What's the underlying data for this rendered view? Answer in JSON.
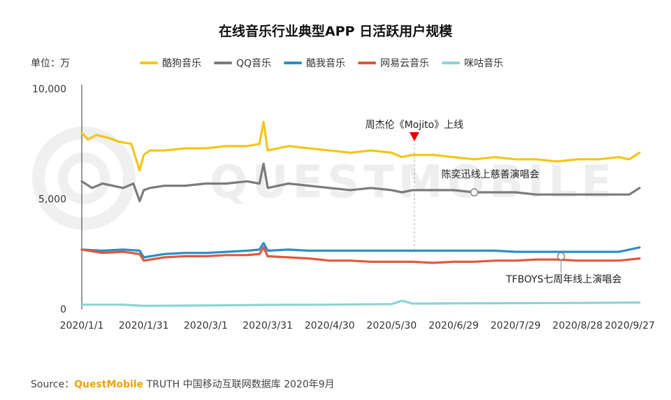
{
  "chart_data": {
    "type": "line",
    "title": "在线音乐行业典型APP 日活跃用户规模",
    "ylabel": "单位：万",
    "ylim": [
      0,
      10000
    ],
    "y_ticks": [
      "0",
      "5,000",
      "10,000"
    ],
    "x_ticks": [
      "2020/1/1",
      "2020/1/31",
      "2020/3/1",
      "2020/3/31",
      "2020/4/30",
      "2020/5/30",
      "2020/6/29",
      "2020/7/29",
      "2020/8/28",
      "2020/9/27"
    ],
    "x_range_days": [
      0,
      270
    ],
    "series": [
      {
        "name": "酷狗音乐",
        "color": "#f5c518",
        "x": [
          0,
          3,
          7,
          12,
          18,
          24,
          28,
          30,
          33,
          40,
          50,
          60,
          70,
          80,
          86,
          88,
          90,
          100,
          110,
          120,
          130,
          140,
          150,
          155,
          160,
          170,
          180,
          190,
          200,
          210,
          220,
          230,
          240,
          250,
          260,
          265,
          270
        ],
        "values": [
          8000,
          7700,
          7900,
          7800,
          7600,
          7500,
          6300,
          7000,
          7200,
          7200,
          7300,
          7300,
          7400,
          7400,
          7500,
          8500,
          7200,
          7400,
          7300,
          7200,
          7100,
          7200,
          7100,
          6900,
          7000,
          7000,
          6900,
          6800,
          6900,
          6800,
          6800,
          6700,
          6800,
          6800,
          6900,
          6800,
          7100
        ]
      },
      {
        "name": "QQ音乐",
        "color": "#7b7b7b",
        "x": [
          0,
          5,
          10,
          15,
          20,
          25,
          28,
          30,
          33,
          40,
          50,
          60,
          70,
          80,
          86,
          88,
          90,
          100,
          110,
          120,
          130,
          140,
          150,
          155,
          160,
          170,
          180,
          190,
          200,
          210,
          220,
          230,
          240,
          250,
          260,
          265,
          270
        ],
        "values": [
          5800,
          5500,
          5700,
          5600,
          5500,
          5700,
          4900,
          5400,
          5500,
          5600,
          5600,
          5700,
          5700,
          5800,
          5700,
          6600,
          5500,
          5700,
          5600,
          5500,
          5400,
          5500,
          5400,
          5300,
          5400,
          5400,
          5400,
          5300,
          5300,
          5300,
          5200,
          5200,
          5200,
          5200,
          5200,
          5200,
          5500
        ]
      },
      {
        "name": "酷我音乐",
        "color": "#2b8fc6",
        "x": [
          0,
          10,
          20,
          28,
          30,
          40,
          50,
          60,
          70,
          80,
          86,
          88,
          90,
          100,
          110,
          120,
          130,
          140,
          150,
          155,
          160,
          170,
          180,
          190,
          200,
          210,
          220,
          230,
          240,
          250,
          260,
          270
        ],
        "values": [
          2700,
          2650,
          2700,
          2650,
          2350,
          2500,
          2550,
          2550,
          2600,
          2650,
          2700,
          3000,
          2650,
          2700,
          2650,
          2650,
          2650,
          2650,
          2650,
          2650,
          2650,
          2650,
          2650,
          2650,
          2650,
          2600,
          2600,
          2600,
          2600,
          2600,
          2600,
          2800
        ]
      },
      {
        "name": "网易云音乐",
        "color": "#e0583c",
        "x": [
          0,
          10,
          20,
          28,
          30,
          40,
          50,
          60,
          70,
          80,
          86,
          88,
          90,
          100,
          110,
          120,
          130,
          140,
          150,
          155,
          160,
          170,
          180,
          190,
          200,
          210,
          220,
          230,
          240,
          250,
          260,
          270
        ],
        "values": [
          2700,
          2550,
          2600,
          2500,
          2200,
          2350,
          2400,
          2400,
          2450,
          2450,
          2500,
          2800,
          2400,
          2350,
          2300,
          2200,
          2200,
          2150,
          2150,
          2150,
          2150,
          2100,
          2150,
          2150,
          2200,
          2200,
          2250,
          2250,
          2200,
          2200,
          2200,
          2300
        ]
      },
      {
        "name": "咪咕音乐",
        "color": "#8ed3d3",
        "x": [
          0,
          20,
          25,
          30,
          50,
          80,
          90,
          120,
          150,
          155,
          160,
          180,
          210,
          240,
          270
        ],
        "values": [
          200,
          200,
          170,
          150,
          160,
          180,
          190,
          200,
          230,
          380,
          250,
          260,
          270,
          280,
          300
        ]
      }
    ],
    "annotations": {
      "mojito": "周杰伦《Mojito》上线",
      "eason": "陈奕迅线上慈善演唱会",
      "tfboys": "TFBOYS七周年线上演唱会"
    },
    "annotation_days": {
      "mojito": 161,
      "eason": 190,
      "tfboys": 232
    }
  },
  "unit_label": "单位：万",
  "source": {
    "prefix": "Source：",
    "brand": "QuestMobile",
    "suffix": " TRUTH 中国移动互联网数据库 2020年9月"
  },
  "watermark": "QUESTMOBILE"
}
